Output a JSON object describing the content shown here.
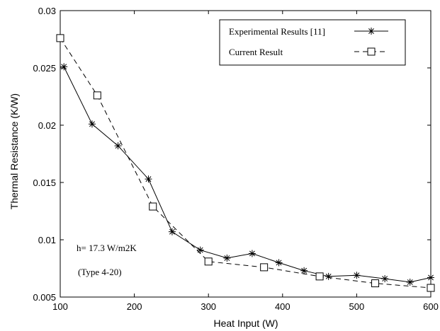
{
  "chart_data": {
    "type": "line",
    "xlabel": "Heat Input (W)",
    "ylabel": "Thermal Resistance (K/W)",
    "xlim": [
      100,
      600
    ],
    "ylim": [
      0.005,
      0.03
    ],
    "xticks": [
      "100",
      "200",
      "300",
      "400",
      "500",
      "600"
    ],
    "yticks": [
      "0.005",
      "0.01",
      "0.015",
      "0.02",
      "0.025",
      "0.03"
    ],
    "grid": false,
    "legend_position": "top-right",
    "series": [
      {
        "name": "Experimental Results [11]",
        "marker": "asterisk",
        "line_style": "solid",
        "color": "#000000",
        "x": [
          105,
          143,
          178,
          219,
          251,
          289,
          325,
          359,
          395,
          429,
          462,
          500,
          538,
          572,
          600
        ],
        "y": [
          0.0251,
          0.0201,
          0.0182,
          0.0153,
          0.0107,
          0.0091,
          0.0084,
          0.0088,
          0.008,
          0.0073,
          0.0068,
          0.0069,
          0.0066,
          0.0063,
          0.0067
        ]
      },
      {
        "name": "Current Result",
        "marker": "square",
        "line_style": "dashed",
        "color": "#000000",
        "x": [
          100,
          150,
          225,
          300,
          375,
          450,
          525,
          600
        ],
        "y": [
          0.0276,
          0.0226,
          0.0129,
          0.0081,
          0.0076,
          0.0068,
          0.0062,
          0.0058
        ]
      }
    ],
    "annotations": [
      "h= 17.3 W/m2K",
      "(Type 4-20)"
    ]
  }
}
